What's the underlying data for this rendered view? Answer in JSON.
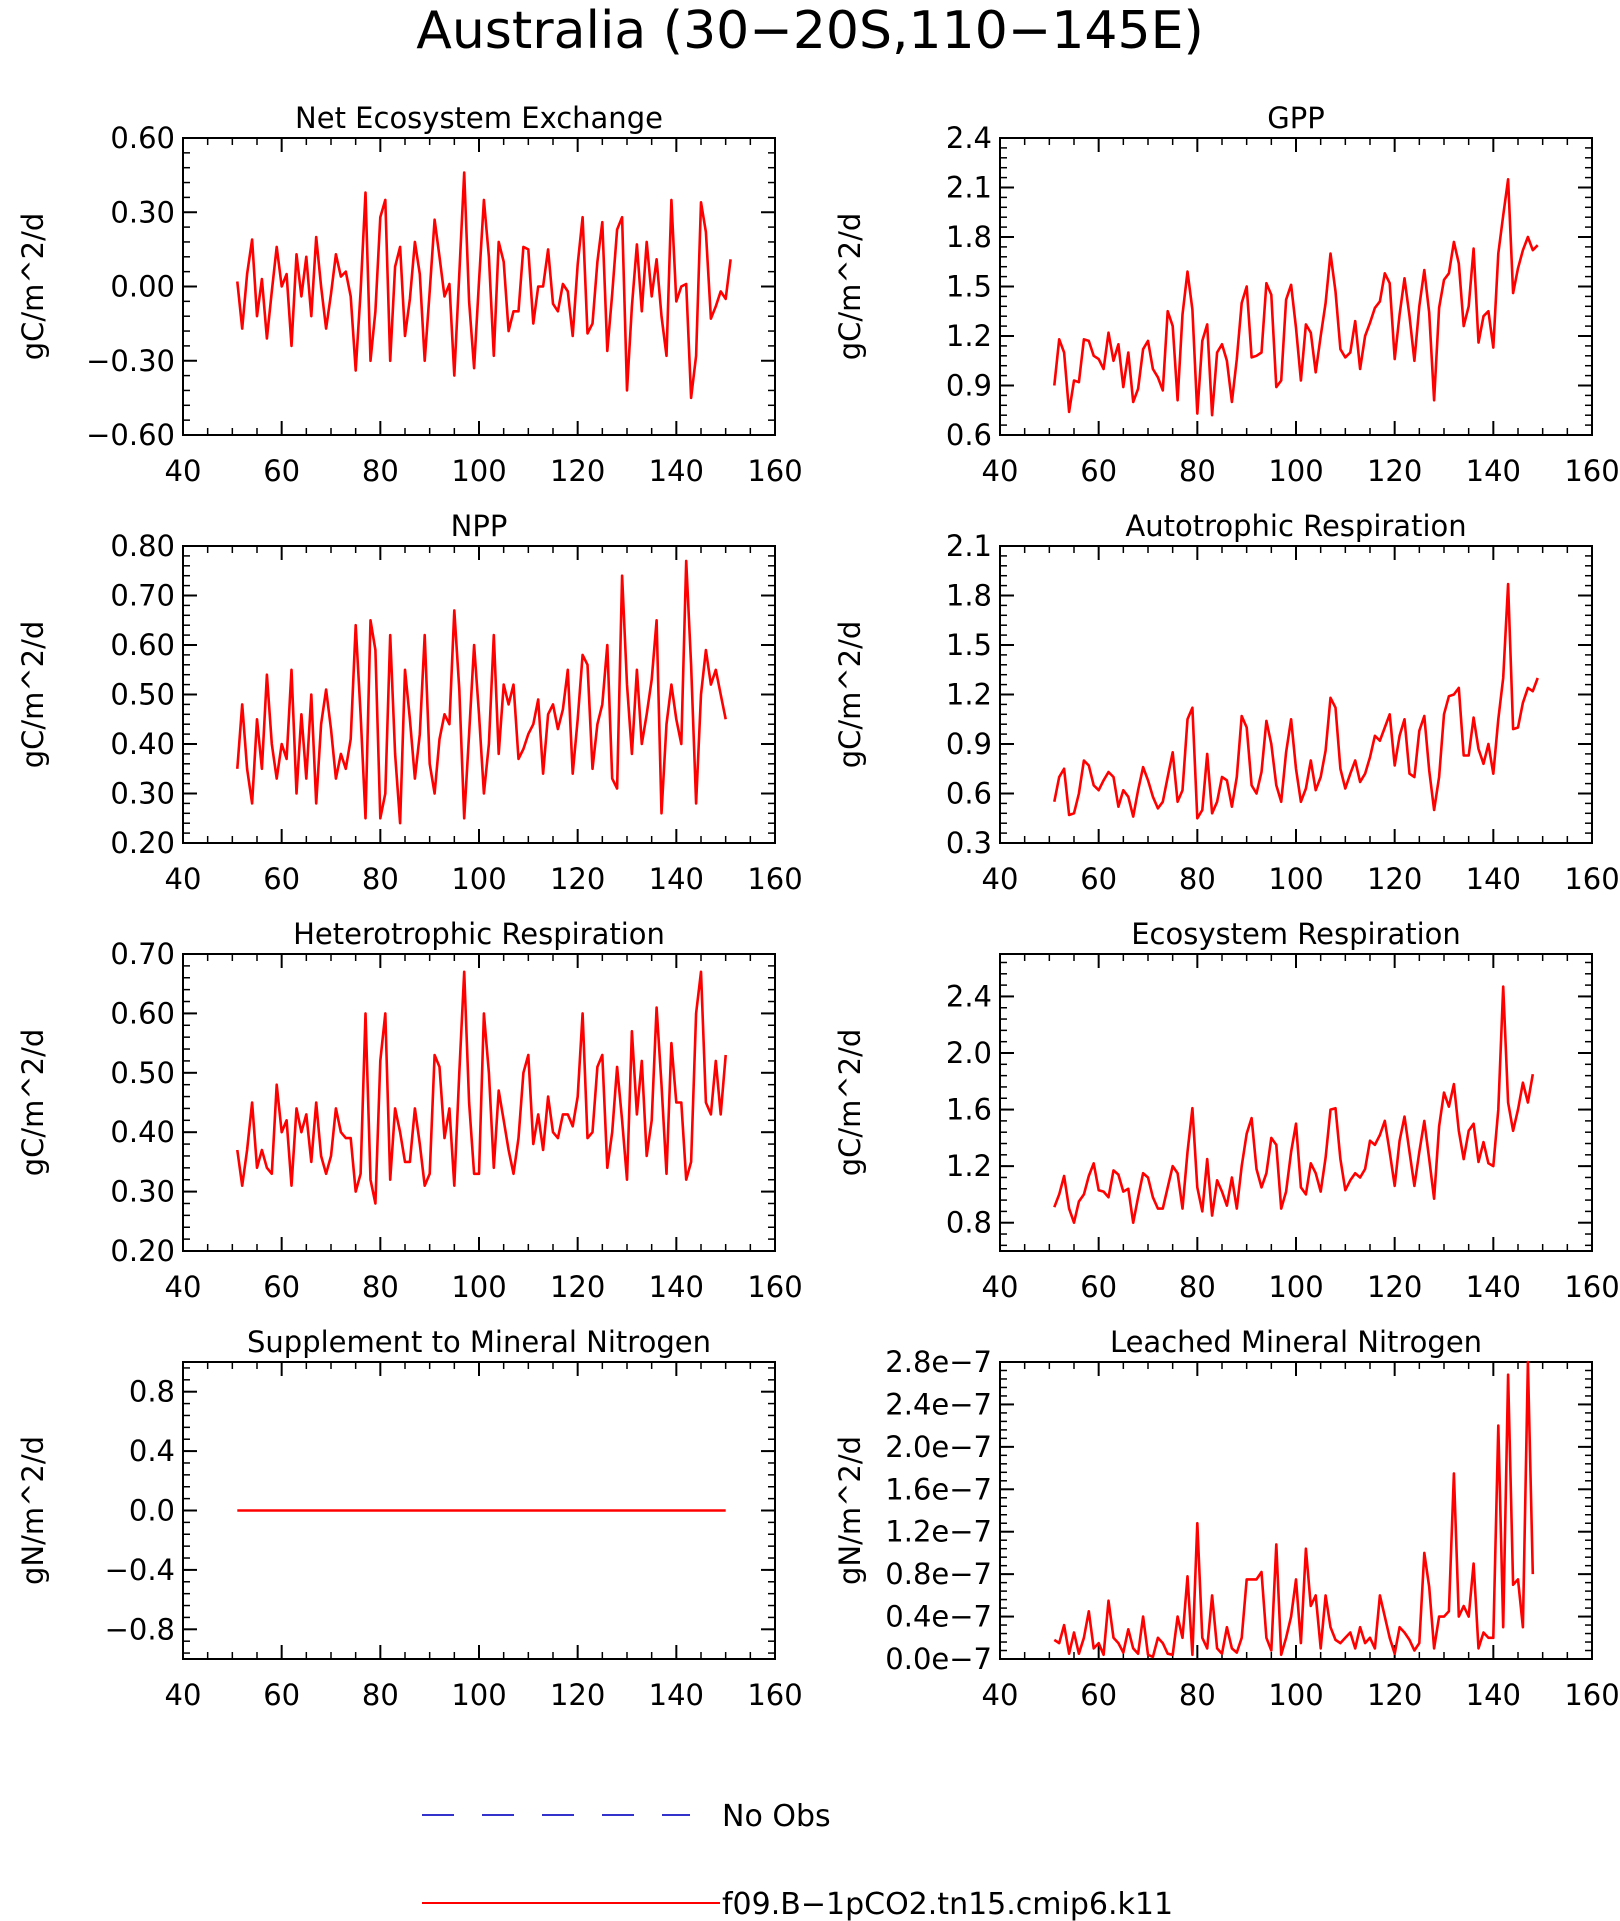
{
  "figure": {
    "title": "Australia (30−20S,110−145E)",
    "line_color": "#ff0000",
    "obs_color": "#3333cc"
  },
  "legend": [
    {
      "label": "No Obs",
      "style": "dashed",
      "color": "#3333cc"
    },
    {
      "label": "f09.B−1pCO2.tn15.cmip6.k11",
      "style": "solid",
      "color": "#ff0000"
    }
  ],
  "chart_data": [
    {
      "type": "line",
      "title": "Net Ecosystem Exchange",
      "ylabel": "gC/m^2/d",
      "xlim": [
        40,
        160
      ],
      "xticks": [
        40,
        60,
        80,
        100,
        120,
        140,
        160
      ],
      "xtick_labels": [
        "40",
        "60",
        "80",
        "100",
        "120",
        "140",
        "160"
      ],
      "ylim": [
        -0.6,
        0.6
      ],
      "yticks": [
        -0.6,
        -0.3,
        0.0,
        0.3,
        0.6
      ],
      "ytick_labels": [
        "−0.60",
        "−0.30",
        "0.00",
        "0.30",
        "0.60"
      ],
      "x_start": 51,
      "x_step": 1,
      "series": [
        {
          "values": [
            0.02,
            -0.17,
            0.05,
            0.19,
            -0.12,
            0.03,
            -0.21,
            -0.02,
            0.16,
            0.0,
            0.05,
            -0.24,
            0.13,
            -0.04,
            0.12,
            -0.12,
            0.2,
            0.0,
            -0.17,
            -0.03,
            0.13,
            0.04,
            0.06,
            -0.04,
            -0.34,
            -0.02,
            0.38,
            -0.3,
            -0.1,
            0.28,
            0.35,
            -0.3,
            0.08,
            0.16,
            -0.2,
            -0.05,
            0.18,
            0.05,
            -0.3,
            -0.02,
            0.27,
            0.12,
            -0.04,
            0.01,
            -0.36,
            0.05,
            0.46,
            -0.06,
            -0.33,
            0.02,
            0.35,
            0.12,
            -0.28,
            0.18,
            0.1,
            -0.18,
            -0.1,
            -0.1,
            0.16,
            0.15,
            -0.15,
            0.0,
            0.0,
            0.15,
            -0.07,
            -0.1,
            0.01,
            -0.02,
            -0.2,
            0.09,
            0.28,
            -0.19,
            -0.15,
            0.1,
            0.26,
            -0.26,
            -0.03,
            0.23,
            0.28,
            -0.42,
            -0.08,
            0.17,
            -0.1,
            0.18,
            -0.04,
            0.11,
            -0.12,
            -0.28,
            0.35,
            -0.06,
            0.0,
            0.01,
            -0.45,
            -0.28,
            0.34,
            0.22,
            -0.13,
            -0.08,
            -0.02,
            -0.05,
            0.11
          ]
        }
      ]
    },
    {
      "type": "line",
      "title": "GPP",
      "ylabel": "gC/m^2/d",
      "xlim": [
        40,
        160
      ],
      "xticks": [
        40,
        60,
        80,
        100,
        120,
        140,
        160
      ],
      "xtick_labels": [
        "40",
        "60",
        "80",
        "100",
        "120",
        "140",
        "160"
      ],
      "ylim": [
        0.6,
        2.4
      ],
      "yticks": [
        0.6,
        0.9,
        1.2,
        1.5,
        1.8,
        2.1,
        2.4
      ],
      "ytick_labels": [
        "0.6",
        "0.9",
        "1.2",
        "1.5",
        "1.8",
        "2.1",
        "2.4"
      ],
      "x_start": 51,
      "x_step": 1,
      "series": [
        {
          "values": [
            0.9,
            1.18,
            1.1,
            0.74,
            0.93,
            0.92,
            1.18,
            1.17,
            1.08,
            1.06,
            1.0,
            1.22,
            1.05,
            1.15,
            0.89,
            1.1,
            0.8,
            0.88,
            1.12,
            1.17,
            1.0,
            0.95,
            0.87,
            1.35,
            1.26,
            0.81,
            1.33,
            1.59,
            1.36,
            0.73,
            1.17,
            1.27,
            0.72,
            1.1,
            1.15,
            1.05,
            0.8,
            1.06,
            1.4,
            1.5,
            1.07,
            1.08,
            1.1,
            1.52,
            1.45,
            0.89,
            0.93,
            1.42,
            1.51,
            1.25,
            0.93,
            1.27,
            1.22,
            0.98,
            1.2,
            1.4,
            1.7,
            1.47,
            1.12,
            1.07,
            1.1,
            1.29,
            1.0,
            1.2,
            1.28,
            1.37,
            1.41,
            1.58,
            1.52,
            1.06,
            1.33,
            1.55,
            1.32,
            1.05,
            1.38,
            1.6,
            1.34,
            0.81,
            1.37,
            1.54,
            1.58,
            1.77,
            1.64,
            1.26,
            1.38,
            1.73,
            1.16,
            1.32,
            1.35,
            1.13,
            1.7,
            1.93,
            2.15,
            1.46,
            1.61,
            1.72,
            1.8,
            1.72,
            1.75
          ]
        }
      ]
    },
    {
      "type": "line",
      "title": "NPP",
      "ylabel": "gC/m^2/d",
      "xlim": [
        40,
        160
      ],
      "xticks": [
        40,
        60,
        80,
        100,
        120,
        140,
        160
      ],
      "xtick_labels": [
        "40",
        "60",
        "80",
        "100",
        "120",
        "140",
        "160"
      ],
      "ylim": [
        0.2,
        0.8
      ],
      "yticks": [
        0.2,
        0.3,
        0.4,
        0.5,
        0.6,
        0.7,
        0.8
      ],
      "ytick_labels": [
        "0.20",
        "0.30",
        "0.40",
        "0.50",
        "0.60",
        "0.70",
        "0.80"
      ],
      "x_start": 51,
      "x_step": 1,
      "series": [
        {
          "values": [
            0.35,
            0.48,
            0.35,
            0.28,
            0.45,
            0.35,
            0.54,
            0.4,
            0.33,
            0.4,
            0.37,
            0.55,
            0.3,
            0.46,
            0.33,
            0.5,
            0.28,
            0.44,
            0.51,
            0.43,
            0.33,
            0.38,
            0.35,
            0.41,
            0.64,
            0.46,
            0.25,
            0.65,
            0.59,
            0.25,
            0.3,
            0.62,
            0.38,
            0.24,
            0.55,
            0.45,
            0.33,
            0.42,
            0.62,
            0.36,
            0.3,
            0.41,
            0.46,
            0.44,
            0.67,
            0.51,
            0.25,
            0.42,
            0.6,
            0.46,
            0.3,
            0.4,
            0.62,
            0.38,
            0.52,
            0.48,
            0.52,
            0.37,
            0.39,
            0.42,
            0.44,
            0.49,
            0.34,
            0.46,
            0.48,
            0.43,
            0.47,
            0.55,
            0.34,
            0.45,
            0.58,
            0.56,
            0.35,
            0.44,
            0.48,
            0.6,
            0.33,
            0.31,
            0.74,
            0.52,
            0.38,
            0.55,
            0.4,
            0.46,
            0.53,
            0.65,
            0.26,
            0.44,
            0.52,
            0.45,
            0.4,
            0.77,
            0.56,
            0.28,
            0.5,
            0.59,
            0.52,
            0.55,
            0.5,
            0.45
          ]
        }
      ]
    },
    {
      "type": "line",
      "title": "Autotrophic Respiration",
      "ylabel": "gC/m^2/d",
      "xlim": [
        40,
        160
      ],
      "xticks": [
        40,
        60,
        80,
        100,
        120,
        140,
        160
      ],
      "xtick_labels": [
        "40",
        "60",
        "80",
        "100",
        "120",
        "140",
        "160"
      ],
      "ylim": [
        0.3,
        2.1
      ],
      "yticks": [
        0.3,
        0.6,
        0.9,
        1.2,
        1.5,
        1.8,
        2.1
      ],
      "ytick_labels": [
        "0.3",
        "0.6",
        "0.9",
        "1.2",
        "1.5",
        "1.8",
        "2.1"
      ],
      "x_start": 51,
      "x_step": 1,
      "series": [
        {
          "values": [
            0.55,
            0.7,
            0.75,
            0.47,
            0.48,
            0.6,
            0.8,
            0.77,
            0.65,
            0.62,
            0.68,
            0.73,
            0.7,
            0.52,
            0.62,
            0.58,
            0.46,
            0.62,
            0.76,
            0.68,
            0.58,
            0.51,
            0.55,
            0.7,
            0.85,
            0.55,
            0.62,
            1.05,
            1.12,
            0.45,
            0.5,
            0.84,
            0.48,
            0.55,
            0.7,
            0.68,
            0.52,
            0.7,
            1.07,
            1.0,
            0.65,
            0.6,
            0.73,
            1.04,
            0.9,
            0.65,
            0.55,
            0.85,
            1.05,
            0.75,
            0.55,
            0.63,
            0.8,
            0.62,
            0.7,
            0.86,
            1.18,
            1.12,
            0.75,
            0.63,
            0.72,
            0.8,
            0.67,
            0.72,
            0.82,
            0.95,
            0.92,
            1.0,
            1.08,
            0.77,
            0.95,
            1.05,
            0.72,
            0.7,
            0.98,
            1.07,
            0.74,
            0.5,
            0.7,
            1.08,
            1.19,
            1.2,
            1.24,
            0.83,
            0.83,
            1.06,
            0.87,
            0.78,
            0.9,
            0.72,
            1.05,
            1.3,
            1.87,
            0.99,
            1.0,
            1.15,
            1.24,
            1.22,
            1.3
          ]
        }
      ]
    },
    {
      "type": "line",
      "title": "Heterotrophic Respiration",
      "ylabel": "gC/m^2/d",
      "xlim": [
        40,
        160
      ],
      "xticks": [
        40,
        60,
        80,
        100,
        120,
        140,
        160
      ],
      "xtick_labels": [
        "40",
        "60",
        "80",
        "100",
        "120",
        "140",
        "160"
      ],
      "ylim": [
        0.2,
        0.7
      ],
      "yticks": [
        0.2,
        0.3,
        0.4,
        0.5,
        0.6,
        0.7
      ],
      "ytick_labels": [
        "0.20",
        "0.30",
        "0.40",
        "0.50",
        "0.60",
        "0.70"
      ],
      "x_start": 51,
      "x_step": 1,
      "series": [
        {
          "values": [
            0.37,
            0.31,
            0.37,
            0.45,
            0.34,
            0.37,
            0.34,
            0.33,
            0.48,
            0.4,
            0.42,
            0.31,
            0.44,
            0.4,
            0.43,
            0.35,
            0.45,
            0.36,
            0.33,
            0.36,
            0.44,
            0.4,
            0.39,
            0.39,
            0.3,
            0.33,
            0.6,
            0.32,
            0.28,
            0.52,
            0.6,
            0.32,
            0.44,
            0.4,
            0.35,
            0.35,
            0.44,
            0.38,
            0.31,
            0.33,
            0.53,
            0.51,
            0.39,
            0.44,
            0.31,
            0.5,
            0.67,
            0.45,
            0.33,
            0.33,
            0.6,
            0.5,
            0.34,
            0.47,
            0.42,
            0.37,
            0.33,
            0.39,
            0.5,
            0.53,
            0.38,
            0.43,
            0.37,
            0.46,
            0.4,
            0.39,
            0.43,
            0.43,
            0.41,
            0.46,
            0.6,
            0.39,
            0.4,
            0.51,
            0.53,
            0.34,
            0.4,
            0.51,
            0.42,
            0.32,
            0.57,
            0.43,
            0.52,
            0.36,
            0.42,
            0.61,
            0.48,
            0.33,
            0.55,
            0.45,
            0.45,
            0.32,
            0.35,
            0.6,
            0.67,
            0.45,
            0.43,
            0.52,
            0.43,
            0.53
          ]
        }
      ]
    },
    {
      "type": "line",
      "title": "Ecosystem Respiration",
      "ylabel": "gC/m^2/d",
      "xlim": [
        40,
        160
      ],
      "xticks": [
        40,
        60,
        80,
        100,
        120,
        140,
        160
      ],
      "xtick_labels": [
        "40",
        "60",
        "80",
        "100",
        "120",
        "140",
        "160"
      ],
      "ylim": [
        0.6,
        2.7
      ],
      "yticks": [
        0.8,
        1.2,
        1.6,
        2.0,
        2.4
      ],
      "ytick_labels": [
        "0.8",
        "1.2",
        "1.6",
        "2.0",
        "2.4"
      ],
      "x_start": 51,
      "x_step": 1,
      "series": [
        {
          "values": [
            0.91,
            1.0,
            1.13,
            0.9,
            0.8,
            0.95,
            1.0,
            1.13,
            1.22,
            1.03,
            1.02,
            0.98,
            1.17,
            1.14,
            1.02,
            1.04,
            0.8,
            0.98,
            1.15,
            1.12,
            0.98,
            0.9,
            0.9,
            1.05,
            1.2,
            1.15,
            0.9,
            1.3,
            1.61,
            1.05,
            0.88,
            1.25,
            0.85,
            1.1,
            1.02,
            0.92,
            1.12,
            0.9,
            1.2,
            1.43,
            1.54,
            1.18,
            1.05,
            1.15,
            1.4,
            1.35,
            0.9,
            1.02,
            1.3,
            1.5,
            1.05,
            1.0,
            1.22,
            1.15,
            1.02,
            1.26,
            1.6,
            1.61,
            1.25,
            1.03,
            1.1,
            1.15,
            1.12,
            1.18,
            1.38,
            1.35,
            1.42,
            1.52,
            1.3,
            1.06,
            1.38,
            1.55,
            1.3,
            1.06,
            1.3,
            1.52,
            1.25,
            0.97,
            1.48,
            1.72,
            1.62,
            1.78,
            1.45,
            1.25,
            1.45,
            1.5,
            1.23,
            1.37,
            1.22,
            1.2,
            1.6,
            2.47,
            1.65,
            1.45,
            1.6,
            1.79,
            1.65,
            1.85
          ]
        }
      ]
    },
    {
      "type": "line",
      "title": "Supplement to Mineral Nitrogen",
      "ylabel": "gN/m^2/d",
      "xlim": [
        40,
        160
      ],
      "xticks": [
        40,
        60,
        80,
        100,
        120,
        140,
        160
      ],
      "xtick_labels": [
        "40",
        "60",
        "80",
        "100",
        "120",
        "140",
        "160"
      ],
      "ylim": [
        -1.0,
        1.0
      ],
      "yticks": [
        -0.8,
        -0.4,
        0.0,
        0.4,
        0.8
      ],
      "ytick_labels": [
        "−0.8",
        "−0.4",
        "0.0",
        "0.4",
        "0.8"
      ],
      "x_start": 51,
      "x_step": 99,
      "series": [
        {
          "values": [
            0.0,
            0.0
          ]
        }
      ]
    },
    {
      "type": "line",
      "title": "Leached Mineral Nitrogen",
      "ylabel": "gN/m^2/d",
      "xlim": [
        40,
        160
      ],
      "xticks": [
        40,
        60,
        80,
        100,
        120,
        140,
        160
      ],
      "xtick_labels": [
        "40",
        "60",
        "80",
        "100",
        "120",
        "140",
        "160"
      ],
      "ylim": [
        0.0,
        2.8e-07
      ],
      "yticks": [
        0.0,
        4e-08,
        8e-08,
        1.2e-07,
        1.6e-07,
        2e-07,
        2.4e-07,
        2.8e-07
      ],
      "ytick_labels": [
        "0.0e−7",
        "0.4e−7",
        "0.8e−7",
        "1.2e−7",
        "1.6e−7",
        "2.0e−7",
        "2.4e−7",
        "2.8e−7"
      ],
      "x_start": 51,
      "x_step": 1,
      "series": [
        {
          "values": [
            1.8e-08,
            1.5e-08,
            3.2e-08,
            5e-09,
            2.5e-08,
            5e-09,
            2e-08,
            4.5e-08,
            1e-08,
            1.5e-08,
            4e-09,
            5.5e-08,
            2e-08,
            1.5e-08,
            6e-09,
            2.8e-08,
            1e-08,
            5e-09,
            4e-08,
            4e-09,
            2e-09,
            2e-08,
            1.5e-08,
            5e-09,
            4e-09,
            4e-08,
            2e-08,
            7.8e-08,
            4e-09,
            1.28e-07,
            2e-08,
            1e-08,
            6e-08,
            1e-08,
            5e-09,
            3e-08,
            1e-08,
            6e-09,
            2e-08,
            7.5e-08,
            7.5e-08,
            7.5e-08,
            8.2e-08,
            2e-08,
            8e-09,
            1.08e-07,
            4e-09,
            2e-08,
            4e-08,
            7.5e-08,
            1.5e-08,
            1.04e-07,
            5e-08,
            6e-08,
            1e-08,
            6e-08,
            3e-08,
            1.8e-08,
            1.5e-08,
            2e-08,
            2.5e-08,
            1e-08,
            3e-08,
            1.5e-08,
            2e-08,
            1e-08,
            6e-08,
            4e-08,
            2e-08,
            5e-09,
            3e-08,
            2.5e-08,
            1.8e-08,
            8e-09,
            1.5e-08,
            1e-07,
            6.8e-08,
            1e-08,
            4e-08,
            4e-08,
            4.5e-08,
            1.75e-07,
            4e-08,
            5e-08,
            4e-08,
            9e-08,
            1e-08,
            2.5e-08,
            2e-08,
            2e-08,
            2.2e-07,
            3e-08,
            2.68e-07,
            7e-08,
            7.5e-08,
            3e-08,
            2.8e-07,
            8e-08
          ]
        }
      ]
    }
  ]
}
